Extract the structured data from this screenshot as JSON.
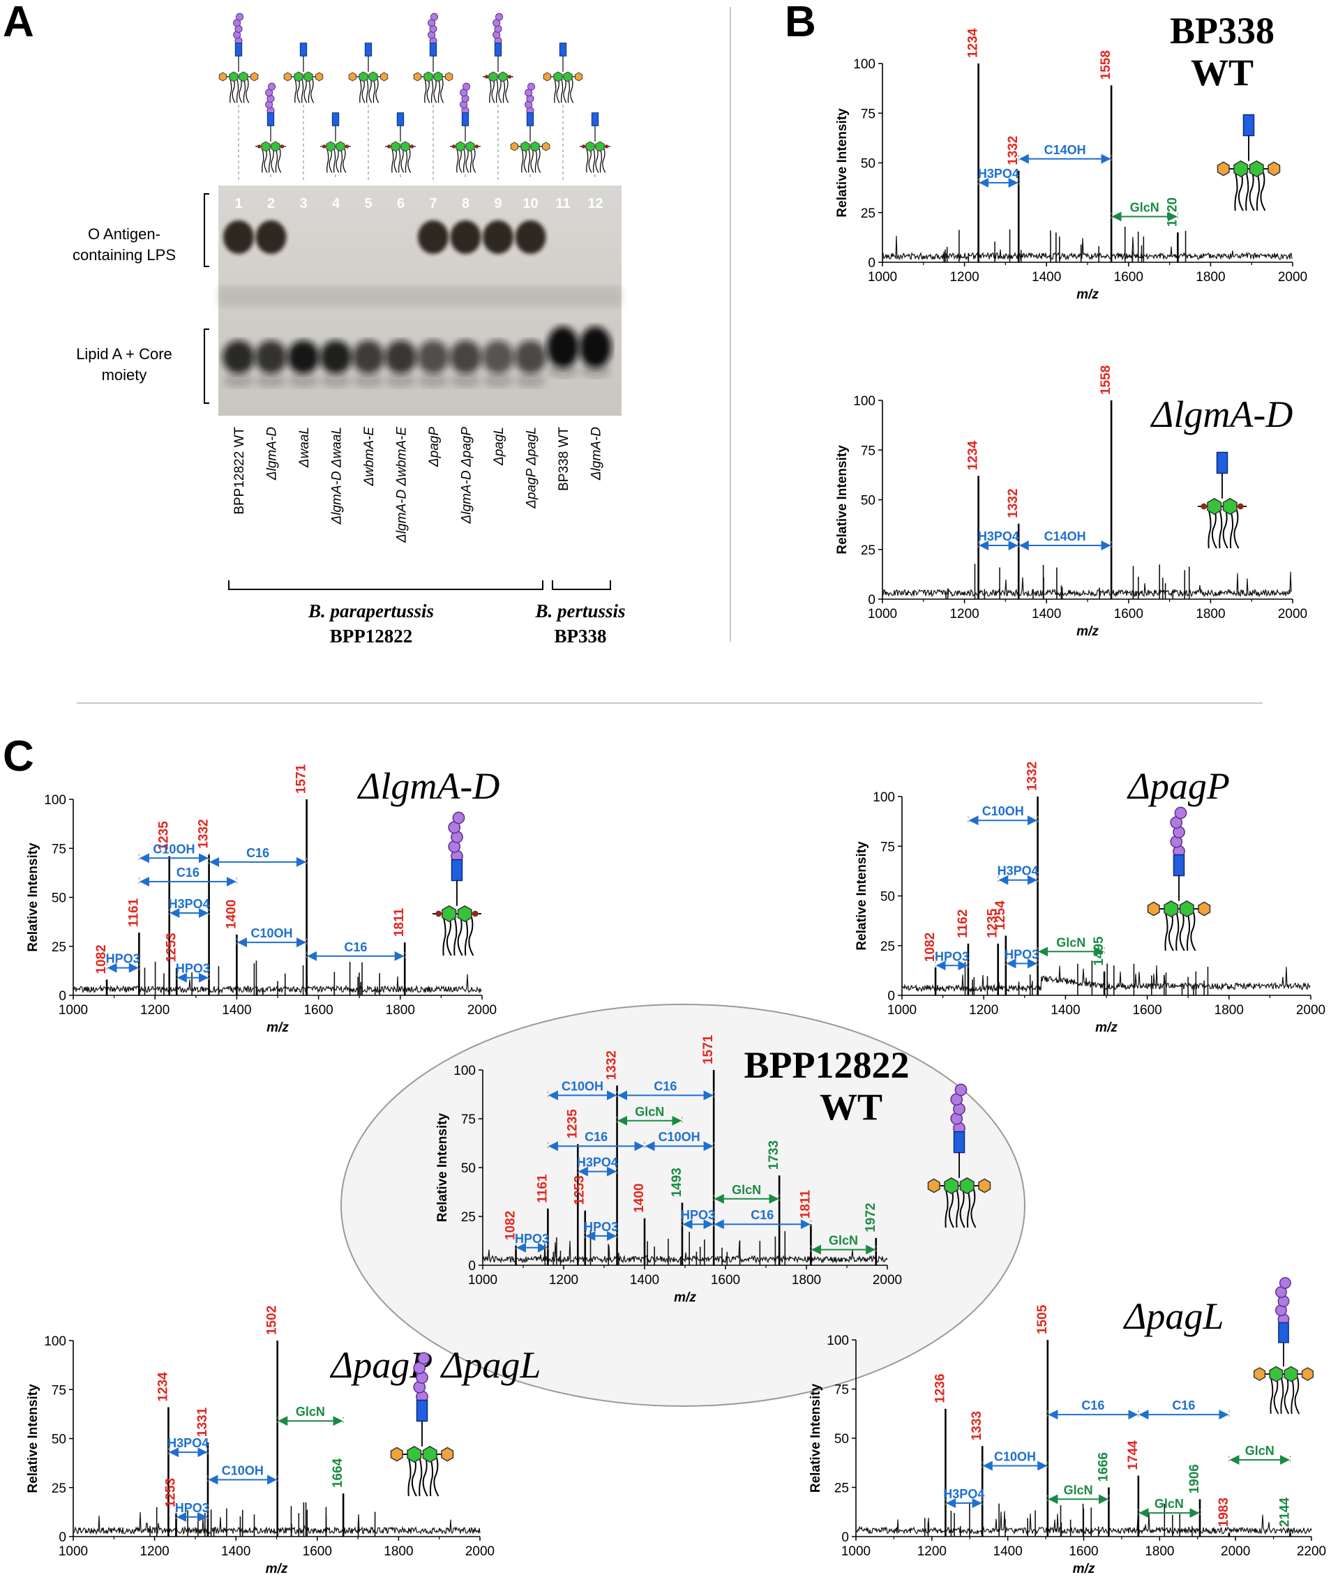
{
  "panel_labels": {
    "a": "A",
    "b": "B",
    "c": "C"
  },
  "colors": {
    "red": "#e3261e",
    "green": "#1a8a43",
    "blue": "#1e6fd0",
    "hexose_green": "#35c33a",
    "kdo_orange": "#f2a43a",
    "core_blue": "#1f5fe0",
    "o_antigen_purple": "#b07ae0"
  },
  "gel": {
    "lane_numbers": [
      "1",
      "2",
      "3",
      "4",
      "5",
      "6",
      "7",
      "8",
      "9",
      "10",
      "11",
      "12"
    ],
    "band_labels": {
      "o_antigen_line1": "O Antigen-",
      "o_antigen_line2": "containing LPS",
      "lipid_core_line1": "Lipid A + Core",
      "lipid_core_line2": "moiety"
    },
    "strains": [
      "BPP12822 WT",
      "ΔlgmA-D",
      "ΔwaaL",
      "ΔlgmA-D ΔwaaL",
      "ΔwbmA-E",
      "ΔlgmA-D ΔwbmA-E",
      "ΔpagP",
      "ΔlgmA-D ΔpagP",
      "ΔpagL",
      "ΔpagP ΔpagL",
      "BP338 WT",
      "ΔlgmA-D"
    ],
    "species_groups": [
      {
        "species": "B. parapertussis",
        "strain": "BPP12822"
      },
      {
        "species": "B. pertussis",
        "strain": "BP338"
      }
    ]
  },
  "common": {
    "ylabel": "Relative Intensity",
    "xlabel": "m/z"
  },
  "chart_data": [
    {
      "id": "bp338wt",
      "type": "line",
      "title_line1": "BP338",
      "title_line2": "WT",
      "xlim": [
        1000,
        2000
      ],
      "ylim": [
        0,
        100
      ],
      "xticks": [
        "1000",
        "1200",
        "1400",
        "1600",
        "1800",
        "2000"
      ],
      "yticks": [
        "0",
        "25",
        "50",
        "75",
        "100"
      ],
      "peaks": [
        {
          "mz": 1234,
          "intensity": 100,
          "color": "red"
        },
        {
          "mz": 1332,
          "intensity": 46,
          "color": "red"
        },
        {
          "mz": 1558,
          "intensity": 89,
          "color": "red"
        },
        {
          "mz": 1720,
          "intensity": 15,
          "color": "green"
        }
      ],
      "annotations": [
        {
          "text": "H3PO4",
          "from": 1234,
          "to": 1332,
          "y": 40,
          "color": "blue"
        },
        {
          "text": "C14OH",
          "from": 1332,
          "to": 1558,
          "y": 52,
          "color": "blue"
        },
        {
          "text": "GlcN",
          "from": 1558,
          "to": 1720,
          "y": 23,
          "color": "green"
        }
      ]
    },
    {
      "id": "bp338lgmad",
      "type": "line",
      "title": "ΔlgmA-D",
      "xlim": [
        1000,
        2000
      ],
      "ylim": [
        0,
        100
      ],
      "xticks": [
        "1000",
        "1200",
        "1400",
        "1600",
        "1800",
        "2000"
      ],
      "yticks": [
        "0",
        "25",
        "50",
        "75",
        "100"
      ],
      "peaks": [
        {
          "mz": 1234,
          "intensity": 62,
          "color": "red"
        },
        {
          "mz": 1332,
          "intensity": 38,
          "color": "red"
        },
        {
          "mz": 1558,
          "intensity": 100,
          "color": "red"
        }
      ],
      "annotations": [
        {
          "text": "H3PO4",
          "from": 1234,
          "to": 1332,
          "y": 27,
          "color": "blue"
        },
        {
          "text": "C14OH",
          "from": 1332,
          "to": 1558,
          "y": 27,
          "color": "blue"
        }
      ]
    },
    {
      "id": "bpplgmad",
      "type": "line",
      "title": "ΔlgmA-D",
      "xlim": [
        1000,
        2000
      ],
      "ylim": [
        0,
        100
      ],
      "xticks": [
        "1000",
        "1200",
        "1400",
        "1600",
        "1800",
        "2000"
      ],
      "yticks": [
        "0",
        "25",
        "50",
        "75",
        "100"
      ],
      "peaks": [
        {
          "mz": 1082,
          "intensity": 8,
          "color": "red"
        },
        {
          "mz": 1161,
          "intensity": 32,
          "color": "red"
        },
        {
          "mz": 1235,
          "intensity": 71,
          "color": "red"
        },
        {
          "mz": 1253,
          "intensity": 14,
          "color": "red"
        },
        {
          "mz": 1332,
          "intensity": 72,
          "color": "red"
        },
        {
          "mz": 1400,
          "intensity": 31,
          "color": "red"
        },
        {
          "mz": 1571,
          "intensity": 100,
          "color": "red"
        },
        {
          "mz": 1811,
          "intensity": 27,
          "color": "red"
        }
      ],
      "annotations": [
        {
          "text": "C10OH",
          "from": 1161,
          "to": 1332,
          "y": 70,
          "color": "blue"
        },
        {
          "text": "C16",
          "from": 1161,
          "to": 1400,
          "y": 58,
          "color": "blue"
        },
        {
          "text": "C16",
          "from": 1332,
          "to": 1571,
          "y": 68,
          "color": "blue"
        },
        {
          "text": "H3PO4",
          "from": 1235,
          "to": 1332,
          "y": 42,
          "color": "blue"
        },
        {
          "text": "HPO3",
          "from": 1082,
          "to": 1161,
          "y": 14,
          "color": "blue"
        },
        {
          "text": "HPO3",
          "from": 1253,
          "to": 1332,
          "y": 9,
          "color": "blue"
        },
        {
          "text": "C10OH",
          "from": 1400,
          "to": 1571,
          "y": 27,
          "color": "blue"
        },
        {
          "text": "C16",
          "from": 1571,
          "to": 1811,
          "y": 20,
          "color": "blue"
        }
      ]
    },
    {
      "id": "bpppagp",
      "type": "line",
      "title": "ΔpagP",
      "xlim": [
        1000,
        2000
      ],
      "ylim": [
        0,
        100
      ],
      "xticks": [
        "1000",
        "1200",
        "1400",
        "1600",
        "1800",
        "2000"
      ],
      "yticks": [
        "0",
        "25",
        "50",
        "75",
        "100"
      ],
      "peaks": [
        {
          "mz": 1082,
          "intensity": 14,
          "color": "red"
        },
        {
          "mz": 1162,
          "intensity": 26,
          "color": "red"
        },
        {
          "mz": 1235,
          "intensity": 26,
          "color": "red"
        },
        {
          "mz": 1254,
          "intensity": 30,
          "color": "red"
        },
        {
          "mz": 1332,
          "intensity": 100,
          "color": "red"
        },
        {
          "mz": 1495,
          "intensity": 12,
          "color": "green"
        }
      ],
      "annotations": [
        {
          "text": "C10OH",
          "from": 1162,
          "to": 1332,
          "y": 88,
          "color": "blue"
        },
        {
          "text": "H3PO4",
          "from": 1235,
          "to": 1332,
          "y": 58,
          "color": "blue"
        },
        {
          "text": "HPO3",
          "from": 1082,
          "to": 1162,
          "y": 15,
          "color": "blue"
        },
        {
          "text": "HPO3",
          "from": 1254,
          "to": 1332,
          "y": 16,
          "color": "blue"
        },
        {
          "text": "GlcN",
          "from": 1332,
          "to": 1495,
          "y": 22,
          "color": "green"
        }
      ]
    },
    {
      "id": "bppwt",
      "type": "line",
      "title_line1": "BPP12822",
      "title_line2": "WT",
      "xlim": [
        1000,
        2000
      ],
      "ylim": [
        0,
        100
      ],
      "xticks": [
        "1000",
        "1200",
        "1400",
        "1600",
        "1800",
        "2000"
      ],
      "yticks": [
        "0",
        "25",
        "50",
        "75",
        "100"
      ],
      "peaks": [
        {
          "mz": 1082,
          "intensity": 10,
          "color": "red"
        },
        {
          "mz": 1161,
          "intensity": 29,
          "color": "red"
        },
        {
          "mz": 1235,
          "intensity": 62,
          "color": "red"
        },
        {
          "mz": 1253,
          "intensity": 28,
          "color": "red"
        },
        {
          "mz": 1332,
          "intensity": 92,
          "color": "red"
        },
        {
          "mz": 1400,
          "intensity": 24,
          "color": "red"
        },
        {
          "mz": 1493,
          "intensity": 32,
          "color": "green"
        },
        {
          "mz": 1571,
          "intensity": 100,
          "color": "red"
        },
        {
          "mz": 1733,
          "intensity": 46,
          "color": "green"
        },
        {
          "mz": 1811,
          "intensity": 21,
          "color": "red"
        },
        {
          "mz": 1972,
          "intensity": 14,
          "color": "green"
        }
      ],
      "annotations": [
        {
          "text": "C10OH",
          "from": 1161,
          "to": 1332,
          "y": 87,
          "color": "blue"
        },
        {
          "text": "C16",
          "from": 1332,
          "to": 1571,
          "y": 87,
          "color": "blue"
        },
        {
          "text": "GlcN",
          "from": 1332,
          "to": 1493,
          "y": 74,
          "color": "green"
        },
        {
          "text": "C16",
          "from": 1161,
          "to": 1400,
          "y": 61,
          "color": "blue"
        },
        {
          "text": "C10OH",
          "from": 1400,
          "to": 1571,
          "y": 61,
          "color": "blue"
        },
        {
          "text": "H3PO4",
          "from": 1235,
          "to": 1332,
          "y": 48,
          "color": "blue"
        },
        {
          "text": "HPO3",
          "from": 1082,
          "to": 1161,
          "y": 9,
          "color": "blue"
        },
        {
          "text": "HPO3",
          "from": 1253,
          "to": 1332,
          "y": 15,
          "color": "blue"
        },
        {
          "text": "HPO3",
          "from": 1493,
          "to": 1571,
          "y": 21,
          "color": "blue"
        },
        {
          "text": "GlcN",
          "from": 1571,
          "to": 1733,
          "y": 34,
          "color": "green"
        },
        {
          "text": "C16",
          "from": 1571,
          "to": 1811,
          "y": 21,
          "color": "blue"
        },
        {
          "text": "GlcN",
          "from": 1811,
          "to": 1972,
          "y": 8,
          "color": "green"
        }
      ]
    },
    {
      "id": "bpppagppagl",
      "type": "line",
      "title": "ΔpagP ΔpagL",
      "xlim": [
        1000,
        2000
      ],
      "ylim": [
        0,
        100
      ],
      "xticks": [
        "1000",
        "1200",
        "1400",
        "1600",
        "1800",
        "2000"
      ],
      "yticks": [
        "0",
        "25",
        "50",
        "75",
        "100"
      ],
      "peaks": [
        {
          "mz": 1234,
          "intensity": 66,
          "color": "red"
        },
        {
          "mz": 1253,
          "intensity": 12,
          "color": "red"
        },
        {
          "mz": 1331,
          "intensity": 48,
          "color": "red"
        },
        {
          "mz": 1502,
          "intensity": 100,
          "color": "red"
        },
        {
          "mz": 1664,
          "intensity": 22,
          "color": "green"
        }
      ],
      "annotations": [
        {
          "text": "H3PO4",
          "from": 1234,
          "to": 1331,
          "y": 43,
          "color": "blue"
        },
        {
          "text": "HPO3",
          "from": 1253,
          "to": 1331,
          "y": 10,
          "color": "blue"
        },
        {
          "text": "C10OH",
          "from": 1331,
          "to": 1502,
          "y": 29,
          "color": "blue"
        },
        {
          "text": "GlcN",
          "from": 1502,
          "to": 1664,
          "y": 59,
          "color": "green"
        }
      ]
    },
    {
      "id": "bpppagl",
      "type": "line",
      "title": "ΔpagL",
      "xlim": [
        1000,
        2200
      ],
      "ylim": [
        0,
        100
      ],
      "xticks": [
        "1000",
        "1200",
        "1400",
        "1600",
        "1800",
        "2000",
        "2200"
      ],
      "yticks": [
        "0",
        "25",
        "50",
        "75",
        "100"
      ],
      "peaks": [
        {
          "mz": 1236,
          "intensity": 65,
          "color": "red"
        },
        {
          "mz": 1333,
          "intensity": 46,
          "color": "red"
        },
        {
          "mz": 1505,
          "intensity": 100,
          "color": "red"
        },
        {
          "mz": 1666,
          "intensity": 25,
          "color": "green"
        },
        {
          "mz": 1744,
          "intensity": 31,
          "color": "red"
        },
        {
          "mz": 1906,
          "intensity": 19,
          "color": "green"
        },
        {
          "mz": 1983,
          "intensity": 2,
          "color": "red"
        },
        {
          "mz": 2144,
          "intensity": 2,
          "color": "green"
        }
      ],
      "annotations": [
        {
          "text": "H3PO4",
          "from": 1236,
          "to": 1333,
          "y": 17,
          "color": "blue"
        },
        {
          "text": "C10OH",
          "from": 1333,
          "to": 1505,
          "y": 36,
          "color": "blue"
        },
        {
          "text": "C16",
          "from": 1505,
          "to": 1744,
          "y": 62,
          "color": "blue"
        },
        {
          "text": "C16",
          "from": 1744,
          "to": 1983,
          "y": 62,
          "color": "blue"
        },
        {
          "text": "GlcN",
          "from": 1505,
          "to": 1666,
          "y": 19,
          "color": "green"
        },
        {
          "text": "GlcN",
          "from": 1744,
          "to": 1906,
          "y": 12,
          "color": "green"
        },
        {
          "text": "GlcN",
          "from": 1983,
          "to": 2144,
          "y": 39,
          "color": "green"
        }
      ]
    }
  ]
}
